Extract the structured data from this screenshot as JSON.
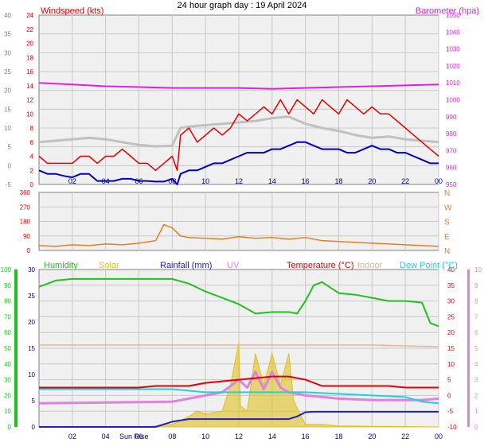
{
  "title": "24 hour graph day : 19 April 2024",
  "hour_labels": [
    "02",
    "04",
    "06",
    "08",
    "10",
    "12",
    "14",
    "16",
    "18",
    "20",
    "22",
    "00"
  ],
  "sunrise_label": "Sun Rise",
  "colors": {
    "wind_speed": "#e00000",
    "wind_avg": "#0000c0",
    "wind_gust_bg": "#c0c0c0",
    "barometer": "#e020e0",
    "wind_dir": "#e08020",
    "humidity": "#20c020",
    "solar": "#e0c020",
    "rainfall": "#2020c0",
    "uv": "#e080e0",
    "temperature": "#e00000",
    "indoor": "#f0b090",
    "dew_point": "#20d0e0",
    "plot_bg": "#f0f0f0",
    "grid": "#c8c8c8"
  },
  "chart_data": [
    {
      "type": "line",
      "title": "",
      "axes": {
        "left": {
          "label": "Windspeed (kts)",
          "ticks": [
            "-5",
            "0",
            "5",
            "10",
            "15",
            "20",
            "25",
            "30",
            "35",
            "40"
          ],
          "range": [
            -5,
            40
          ]
        },
        "left_inner": {
          "ticks": [
            "0",
            "2",
            "4",
            "6",
            "8",
            "10",
            "12",
            "14",
            "16",
            "18",
            "20",
            "22",
            "24"
          ],
          "range": [
            0,
            24
          ]
        },
        "right": {
          "label": "Barometer (hpa)",
          "ticks": [
            "950",
            "960",
            "970",
            "980",
            "990",
            "1000",
            "1010",
            "1020",
            "1030",
            "1040",
            "1050"
          ],
          "range": [
            950,
            1050
          ]
        }
      },
      "x_range_hours": [
        0,
        24
      ],
      "series": [
        {
          "name": "Windspeed (kts)",
          "axis": "left_inner",
          "x": [
            0,
            0.5,
            1,
            1.5,
            2,
            2.5,
            3,
            3.5,
            4,
            4.5,
            5,
            5.5,
            6,
            6.5,
            7,
            7.5,
            8,
            8.3,
            8.5,
            9,
            9.5,
            10,
            10.5,
            11,
            11.5,
            12,
            12.5,
            13,
            13.5,
            14,
            14.5,
            15,
            15.5,
            16,
            16.5,
            17,
            17.5,
            18,
            18.5,
            19,
            19.5,
            20,
            20.5,
            21,
            21.5,
            22,
            22.5,
            23,
            23.5,
            24
          ],
          "values": [
            4,
            3,
            3,
            3,
            3,
            4,
            4,
            3,
            4,
            4,
            5,
            4,
            3,
            3,
            2,
            3,
            4,
            2,
            7,
            8,
            6,
            7,
            8,
            7,
            8,
            10,
            9,
            10,
            11,
            10,
            12,
            10,
            12,
            11,
            10,
            12,
            11,
            10,
            12,
            11,
            10,
            11,
            10,
            10,
            9,
            8,
            7,
            6,
            5,
            4
          ]
        },
        {
          "name": "Wind average",
          "axis": "left_inner",
          "x": [
            0,
            0.5,
            1,
            1.5,
            2,
            2.5,
            3,
            3.5,
            4,
            4.5,
            5,
            5.5,
            6,
            6.5,
            7,
            7.5,
            8,
            8.3,
            8.5,
            9,
            9.5,
            10,
            10.5,
            11,
            11.5,
            12,
            12.5,
            13,
            13.5,
            14,
            14.5,
            15,
            15.5,
            16,
            16.5,
            17,
            17.5,
            18,
            18.5,
            19,
            19.5,
            20,
            20.5,
            21,
            21.5,
            22,
            22.5,
            23,
            23.5,
            24
          ],
          "values": [
            2,
            1.5,
            1.5,
            1.2,
            1,
            1.5,
            1.5,
            0.5,
            0.5,
            0.5,
            0.8,
            0.8,
            0.5,
            0.5,
            0.4,
            0.4,
            0.8,
            0,
            1.5,
            2,
            2,
            2.5,
            3,
            3,
            3.5,
            4,
            4.5,
            4.5,
            4.5,
            5,
            5,
            5.5,
            6,
            6,
            5.5,
            5,
            5,
            5,
            4.5,
            4.5,
            5,
            5.5,
            5,
            5,
            4.5,
            4.5,
            4,
            3.5,
            3,
            3
          ]
        },
        {
          "name": "Wind gust",
          "axis": "left_inner",
          "x": [
            0,
            1,
            2,
            3,
            4,
            5,
            6,
            7,
            8,
            8.5,
            9,
            10,
            11,
            12,
            13,
            14,
            15,
            16,
            17,
            18,
            19,
            20,
            21,
            22,
            23,
            24
          ],
          "values": [
            6,
            6.2,
            6.4,
            6.6,
            6.4,
            6,
            5.6,
            5.4,
            5.5,
            8,
            8.2,
            8.4,
            8.6,
            8.8,
            9,
            9.4,
            9.6,
            8.6,
            8,
            7.6,
            7,
            6.6,
            6.8,
            6.4,
            6.2,
            6
          ]
        },
        {
          "name": "Barometer (hpa)",
          "axis": "right",
          "x": [
            0,
            2,
            4,
            6,
            8,
            10,
            12,
            14,
            16,
            18,
            20,
            22,
            24
          ],
          "values": [
            1010,
            1009,
            1008,
            1007.5,
            1007,
            1007,
            1007,
            1006.5,
            1007,
            1007.5,
            1008,
            1008.5,
            1009
          ]
        }
      ]
    },
    {
      "type": "line",
      "title": "",
      "axes": {
        "left": {
          "ticks": [
            "0",
            "90",
            "180",
            "270",
            "360"
          ],
          "range": [
            0,
            360
          ]
        },
        "right": {
          "ticks": [
            "N",
            "E",
            "S",
            "W",
            "N"
          ]
        }
      },
      "x_range_hours": [
        0,
        24
      ],
      "series": [
        {
          "name": "Wind direction",
          "axis": "left",
          "x": [
            0,
            1,
            2,
            3,
            4,
            5,
            6,
            7,
            7.5,
            8,
            8.5,
            9,
            10,
            11,
            12,
            13,
            14,
            15,
            16,
            17,
            18,
            19,
            20,
            21,
            22,
            23,
            24
          ],
          "values": [
            30,
            25,
            35,
            30,
            40,
            35,
            45,
            60,
            160,
            140,
            90,
            80,
            75,
            70,
            85,
            75,
            80,
            70,
            80,
            60,
            55,
            50,
            45,
            40,
            35,
            30,
            25
          ]
        }
      ]
    },
    {
      "type": "line",
      "title": "",
      "legend": [
        "Humidity",
        "Solar",
        "Rainfall (mm)",
        "UV",
        "Temperature (°C)",
        "Indoor",
        "Dew Point (°C)"
      ],
      "axes": {
        "left_outer": {
          "ticks": [
            "0",
            "10",
            "20",
            "30",
            "40",
            "50",
            "60",
            "70",
            "80",
            "90",
            "100"
          ],
          "range": [
            0,
            100
          ]
        },
        "left_inner": {
          "ticks": [
            "0",
            "5",
            "10",
            "15",
            "20",
            "25",
            "30"
          ],
          "range": [
            0,
            30
          ]
        },
        "right_inner": {
          "ticks": [
            "-10",
            "-5",
            "0",
            "5",
            "10",
            "15",
            "20",
            "25",
            "30",
            "35",
            "40"
          ],
          "range": [
            -10,
            40
          ]
        },
        "right_outer": {
          "ticks": [
            "0",
            "1",
            "2",
            "3",
            "4",
            "5",
            "6",
            "7",
            "8",
            "9",
            "10"
          ],
          "range": [
            0,
            10
          ]
        }
      },
      "x_range_hours": [
        0,
        24
      ],
      "series": [
        {
          "name": "Humidity",
          "axis": "left_outer",
          "x": [
            0,
            1,
            2,
            3,
            4,
            5,
            6,
            7,
            8,
            9,
            10,
            11,
            12,
            13,
            14,
            15,
            15.5,
            16,
            16.5,
            17,
            18,
            19,
            20,
            21,
            22,
            23,
            23.5,
            24
          ],
          "values": [
            89,
            93,
            94,
            94,
            94,
            94,
            94,
            94,
            94,
            91,
            86,
            82,
            78,
            72,
            73,
            73,
            72,
            80,
            90,
            92,
            85,
            84,
            82,
            80,
            80,
            79,
            66,
            64
          ]
        },
        {
          "name": "Solar",
          "axis": "left_inner",
          "x": [
            0,
            6.5,
            7,
            8,
            9,
            9.5,
            10,
            11,
            11.5,
            12,
            12.1,
            12.5,
            13,
            13.5,
            14,
            14.5,
            15,
            15.3,
            15.6,
            16,
            17,
            18,
            24
          ],
          "values": [
            0,
            0,
            0.2,
            0.5,
            2,
            3,
            2.5,
            3,
            8,
            16,
            4,
            3,
            14,
            8,
            14,
            8,
            14,
            5,
            3,
            0.5,
            0.5,
            0.2,
            0
          ]
        },
        {
          "name": "Rainfall (mm)",
          "axis": "left_inner",
          "x": [
            0,
            7,
            8,
            9,
            14.5,
            15,
            15.5,
            16,
            16.5,
            17,
            24
          ],
          "values": [
            0,
            0,
            1,
            1.5,
            1.5,
            1.5,
            2,
            2.8,
            2.9,
            2.9,
            2.9
          ]
        },
        {
          "name": "UV",
          "axis": "right_outer",
          "x": [
            0,
            8,
            9,
            10,
            11,
            12,
            12.5,
            13,
            13.5,
            14,
            14.5,
            15,
            16,
            18,
            20,
            22,
            23,
            24
          ],
          "values": [
            1.5,
            1.6,
            1.8,
            2,
            2.2,
            3,
            2.5,
            3.5,
            2.4,
            3.5,
            2.5,
            2.2,
            2,
            1.8,
            1.7,
            1.7,
            1.7,
            1.8
          ]
        },
        {
          "name": "Temperature (°C)",
          "axis": "right_inner",
          "x": [
            0,
            1,
            2,
            3,
            4,
            5,
            6,
            7,
            8,
            9,
            10,
            11,
            12,
            13,
            14,
            15,
            16,
            17,
            18,
            19,
            20,
            21,
            22,
            23,
            24
          ],
          "values": [
            2.5,
            2.5,
            2.5,
            2.5,
            2.5,
            2.5,
            2.5,
            3,
            3,
            3,
            4,
            4.5,
            5,
            5.5,
            6,
            6,
            5,
            3,
            3,
            3,
            3,
            3,
            2.5,
            2.5,
            2.5
          ]
        },
        {
          "name": "Indoor",
          "axis": "right_inner",
          "x": [
            0,
            4,
            8,
            12,
            16,
            20,
            24
          ],
          "values": [
            16,
            16,
            16,
            16,
            16,
            16,
            15.5
          ]
        },
        {
          "name": "Dew Point (°C)",
          "axis": "right_inner",
          "x": [
            0,
            2,
            4,
            6,
            8,
            10,
            12,
            14,
            16,
            18,
            20,
            22,
            23,
            24
          ],
          "values": [
            2,
            2,
            2,
            2,
            2,
            1,
            1,
            1,
            1,
            0.5,
            0,
            -0.5,
            -2,
            -2.5
          ]
        }
      ]
    }
  ]
}
